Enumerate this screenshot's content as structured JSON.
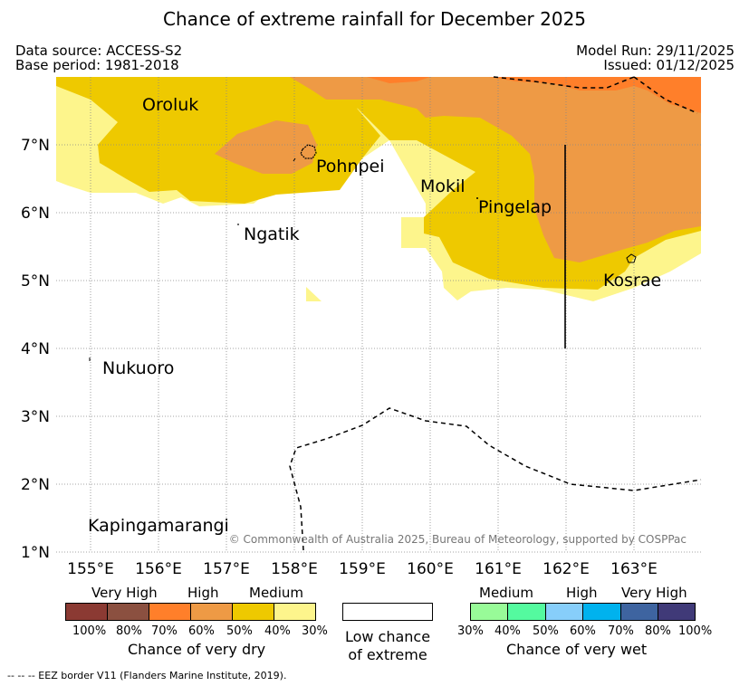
{
  "title": "Chance of extreme rainfall for December 2025",
  "meta": {
    "data_source": "Data source: ACCESS-S2",
    "base_period": "Base period: 1981-2018",
    "model_run": "Model Run: 29/11/2025",
    "issued": "Issued: 01/12/2025"
  },
  "map": {
    "lat_labels": [
      "1°N",
      "2°N",
      "3°N",
      "4°N",
      "5°N",
      "6°N",
      "7°N"
    ],
    "lon_labels": [
      "155°E",
      "156°E",
      "157°E",
      "158°E",
      "159°E",
      "160°E",
      "161°E",
      "162°E",
      "163°E"
    ],
    "places": {
      "oroluk": "Oroluk",
      "pohnpei": "Pohnpei",
      "mokil": "Mokil",
      "pingelap": "Pingelap",
      "ngatik": "Ngatik",
      "kosrae": "Kosrae",
      "nukuoro": "Nukuoro",
      "kapingamarangi": "Kapingamarangi"
    },
    "copyright": "© Commonwealth of Australia 2025, Bureau of Meteorology, supported by COSPPac"
  },
  "colors": {
    "dry_very_high_100": "#8b3a33",
    "dry_very_high_80": "#8b5040",
    "dry_high_70": "#ff7f2a",
    "dry_high_60": "#ee9a45",
    "dry_medium_50": "#eec900",
    "dry_medium_40": "#fdf58c",
    "wet_medium_30": "#98fb98",
    "wet_medium_40": "#54fa9f",
    "wet_high_50": "#87cefa",
    "wet_high_60": "#00b2ee",
    "wet_very_high_70": "#3e64a0",
    "wet_very_high_80": "#403a78"
  },
  "legend": {
    "dry": {
      "categories": [
        "Very High",
        "High",
        "Medium"
      ],
      "percents": [
        "100%",
        "80%",
        "70%",
        "60%",
        "50%",
        "40%",
        "30%"
      ],
      "caption": "Chance of very dry"
    },
    "low": {
      "line1": "Low chance",
      "line2": "of extreme"
    },
    "wet": {
      "categories": [
        "Medium",
        "High",
        "Very High"
      ],
      "percents": [
        "30%",
        "40%",
        "50%",
        "60%",
        "70%",
        "80%",
        "100%"
      ],
      "caption": "Chance of very wet"
    }
  },
  "footer": "-- -- -- EEZ border V11 (Flanders Marine Institute, 2019)."
}
